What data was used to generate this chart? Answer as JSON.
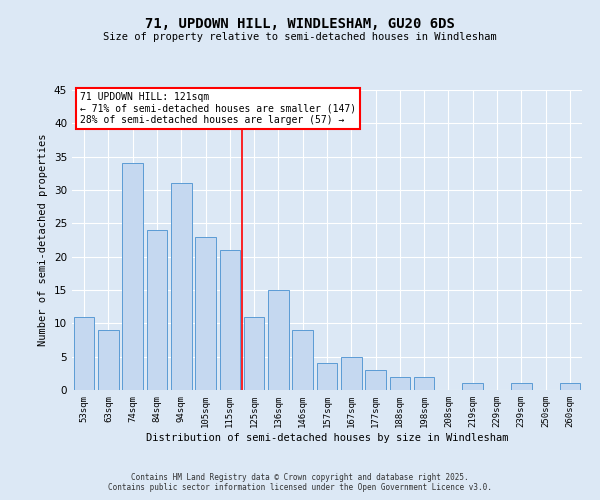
{
  "title1": "71, UPDOWN HILL, WINDLESHAM, GU20 6DS",
  "title2": "Size of property relative to semi-detached houses in Windlesham",
  "xlabel": "Distribution of semi-detached houses by size in Windlesham",
  "ylabel": "Number of semi-detached properties",
  "categories": [
    "53sqm",
    "63sqm",
    "74sqm",
    "84sqm",
    "94sqm",
    "105sqm",
    "115sqm",
    "125sqm",
    "136sqm",
    "146sqm",
    "157sqm",
    "167sqm",
    "177sqm",
    "188sqm",
    "198sqm",
    "208sqm",
    "219sqm",
    "229sqm",
    "239sqm",
    "250sqm",
    "260sqm"
  ],
  "values": [
    11,
    9,
    34,
    24,
    31,
    23,
    21,
    11,
    15,
    9,
    4,
    5,
    3,
    2,
    2,
    0,
    1,
    0,
    1,
    0,
    1
  ],
  "bar_color": "#c5d8f0",
  "bar_edge_color": "#5b9bd5",
  "vline_index": 6.5,
  "vline_color": "red",
  "annotation_title": "71 UPDOWN HILL: 121sqm",
  "annotation_line1": "← 71% of semi-detached houses are smaller (147)",
  "annotation_line2": "28% of semi-detached houses are larger (57) →",
  "ylim": [
    0,
    45
  ],
  "yticks": [
    0,
    5,
    10,
    15,
    20,
    25,
    30,
    35,
    40,
    45
  ],
  "background_color": "#dce8f5",
  "footer1": "Contains HM Land Registry data © Crown copyright and database right 2025.",
  "footer2": "Contains public sector information licensed under the Open Government Licence v3.0."
}
